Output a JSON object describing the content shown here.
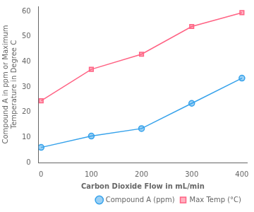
{
  "chart_data": {
    "type": "line",
    "x": [
      0,
      100,
      200,
      300,
      400
    ],
    "series": [
      {
        "name": "Compound A (ppm)",
        "values": [
          6,
          10.5,
          13.5,
          23.5,
          33.5
        ],
        "marker": "circle"
      },
      {
        "name": "Max Temp (°C)",
        "values": [
          24.5,
          37,
          43,
          54,
          59.5
        ],
        "marker": "square"
      }
    ],
    "xlabel": "Carbon Dioxide Flow in mL/min",
    "ylabel": "Compound A in ppm or Maximum\nTemperature in Degree C",
    "xlim": [
      -5,
      410
    ],
    "ylim": [
      0,
      62
    ],
    "xticks": [
      0,
      100,
      200,
      300,
      400
    ],
    "yticks": [
      0,
      10,
      20,
      30,
      40,
      50,
      60
    ],
    "legend": "lower right",
    "grid": false
  }
}
